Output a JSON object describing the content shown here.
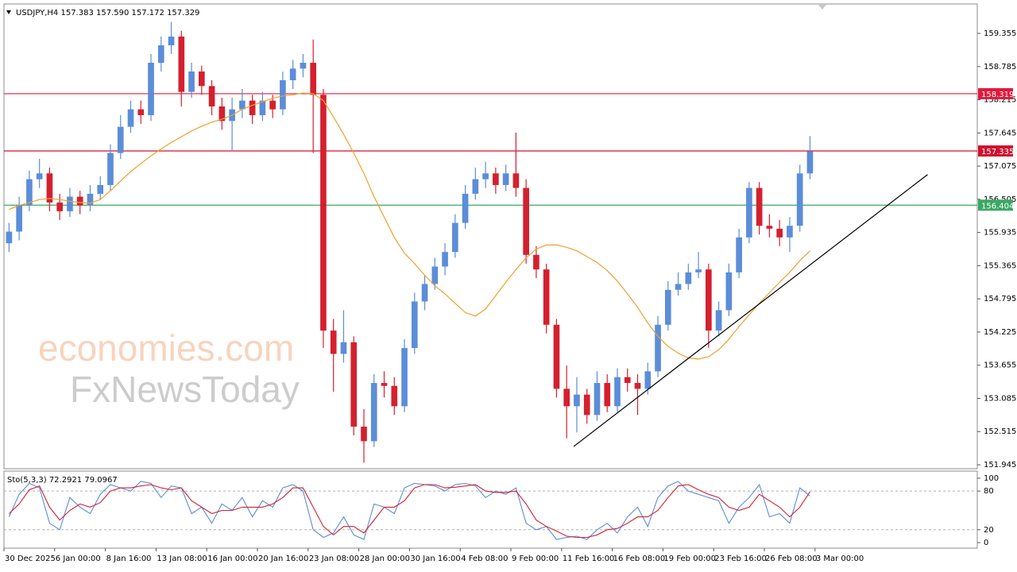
{
  "chart_data": {
    "type": "candlestick",
    "title": "USDJPY,H4 157.383 157.590 157.172 157.329",
    "watermark": [
      "economies.com",
      "FxNewsToday"
    ],
    "xlim": [
      0,
      96
    ],
    "xticks": [
      {
        "value": 0,
        "label": "30 Dec 2025"
      },
      {
        "value": 5,
        "label": "6 Jan 00:00"
      },
      {
        "value": 10,
        "label": "8 Jan 16:00"
      },
      {
        "value": 15,
        "label": "13 Jan 08:00"
      },
      {
        "value": 20,
        "label": "16 Jan 00:00"
      },
      {
        "value": 25,
        "label": "20 Jan 16:00"
      },
      {
        "value": 30,
        "label": "23 Jan 08:00"
      },
      {
        "value": 35,
        "label": "28 Jan 00:00"
      },
      {
        "value": 40,
        "label": "30 Jan 16:00"
      },
      {
        "value": 45,
        "label": "4 Feb 08:00"
      },
      {
        "value": 50,
        "label": "9 Feb 00:00"
      },
      {
        "value": 55,
        "label": "11 Feb 16:00"
      },
      {
        "value": 60,
        "label": "16 Feb 08:00"
      },
      {
        "value": 65,
        "label": "19 Feb 00:00"
      },
      {
        "value": 70,
        "label": "23 Feb 16:00"
      },
      {
        "value": 75,
        "label": "26 Feb 08:00"
      },
      {
        "value": 80,
        "label": "3 Mar 00:00"
      }
    ],
    "ylim": [
      151.877,
      159.86
    ],
    "yticks": [
      159.355,
      158.785,
      158.215,
      157.645,
      157.075,
      156.505,
      155.935,
      155.365,
      154.795,
      154.225,
      153.655,
      153.085,
      152.515,
      151.945
    ],
    "up_color": "#5b8dd9",
    "down_color": "#d4202e",
    "open": [
      155.75,
      155.95,
      156.4,
      156.85,
      156.95,
      156.45,
      156.3,
      156.55,
      156.4,
      156.6,
      156.75,
      157.3,
      157.75,
      158.05,
      157.95,
      158.85,
      159.15,
      159.3,
      158.35,
      158.7,
      158.45,
      158.1,
      157.85,
      158.05,
      158.2,
      157.95,
      158.2,
      158.05,
      158.55,
      158.75,
      158.85,
      158.3,
      154.25,
      153.85,
      154.05,
      152.6,
      152.35,
      153.35,
      153.3,
      152.95,
      153.95,
      154.75,
      155.05,
      155.35,
      155.6,
      156.1,
      156.6,
      156.85,
      156.95,
      156.75,
      156.95,
      156.7,
      155.55,
      155.3,
      154.35,
      153.25,
      152.95,
      153.15,
      152.8,
      153.35,
      152.95,
      153.45,
      153.35,
      153.25,
      153.55,
      154.35,
      154.95,
      155.05,
      155.25,
      155.3,
      154.25,
      154.6,
      155.25,
      155.85,
      156.7,
      156.05,
      156.0,
      155.85,
      156.05,
      156.95
    ],
    "high": [
      156.1,
      156.55,
      157.0,
      157.2,
      157.05,
      156.6,
      156.7,
      156.65,
      156.75,
      156.9,
      157.45,
      157.95,
      158.2,
      158.2,
      159.0,
      159.3,
      159.55,
      159.4,
      158.85,
      158.8,
      158.55,
      158.25,
      158.25,
      158.4,
      158.3,
      158.35,
      158.3,
      158.7,
      158.9,
      159.0,
      159.25,
      158.4,
      154.45,
      154.6,
      154.15,
      152.9,
      153.5,
      153.55,
      153.45,
      154.1,
      154.9,
      155.2,
      155.5,
      155.75,
      156.25,
      156.75,
      157.05,
      157.15,
      157.05,
      157.1,
      157.65,
      156.85,
      155.7,
      155.4,
      154.45,
      153.65,
      153.45,
      153.25,
      153.55,
      153.5,
      153.6,
      153.6,
      153.5,
      153.7,
      154.5,
      155.1,
      155.25,
      155.4,
      155.6,
      155.4,
      154.75,
      155.4,
      156.0,
      156.8,
      156.8,
      156.25,
      156.15,
      156.2,
      157.1,
      157.59
    ],
    "low": [
      155.6,
      155.8,
      156.3,
      156.7,
      156.3,
      156.15,
      156.2,
      156.25,
      156.3,
      156.5,
      156.65,
      157.2,
      157.65,
      157.8,
      157.85,
      158.7,
      159.0,
      158.1,
      158.25,
      158.3,
      157.95,
      157.7,
      157.35,
      157.9,
      157.8,
      157.85,
      157.9,
      157.95,
      158.4,
      158.6,
      157.3,
      153.95,
      153.2,
      153.7,
      152.45,
      151.98,
      152.25,
      153.1,
      152.8,
      152.85,
      153.85,
      154.6,
      154.95,
      155.2,
      155.5,
      156.0,
      156.5,
      156.7,
      156.6,
      156.65,
      156.55,
      155.4,
      155.15,
      154.2,
      153.1,
      152.4,
      152.5,
      152.65,
      152.7,
      152.85,
      152.85,
      153.2,
      152.8,
      153.15,
      153.45,
      154.25,
      154.85,
      154.95,
      155.15,
      153.95,
      154.15,
      154.5,
      155.15,
      155.75,
      155.9,
      155.85,
      155.7,
      155.6,
      155.95,
      156.85
    ],
    "close": [
      155.95,
      156.4,
      156.85,
      156.95,
      156.45,
      156.3,
      156.55,
      156.4,
      156.6,
      156.75,
      157.3,
      157.75,
      158.05,
      157.95,
      158.85,
      159.15,
      159.3,
      158.35,
      158.7,
      158.45,
      158.1,
      157.85,
      158.05,
      158.2,
      157.95,
      158.2,
      158.05,
      158.55,
      158.75,
      158.85,
      158.3,
      154.25,
      153.85,
      154.05,
      152.6,
      152.35,
      153.35,
      153.3,
      152.95,
      153.95,
      154.75,
      155.05,
      155.35,
      155.6,
      156.1,
      156.6,
      156.85,
      156.95,
      156.75,
      156.95,
      156.7,
      155.55,
      155.3,
      154.35,
      153.25,
      152.95,
      153.15,
      152.8,
      153.35,
      152.95,
      153.45,
      153.35,
      153.25,
      153.55,
      154.35,
      154.95,
      155.05,
      155.25,
      155.3,
      154.25,
      154.6,
      155.25,
      155.85,
      156.7,
      156.05,
      156.0,
      155.85,
      156.05,
      156.95,
      157.33
    ],
    "ma": {
      "color": "#f0a030",
      "values": [
        156.33,
        156.4,
        156.45,
        156.5,
        156.52,
        156.5,
        156.47,
        156.45,
        156.44,
        156.5,
        156.65,
        156.82,
        156.98,
        157.12,
        157.25,
        157.37,
        157.48,
        157.58,
        157.68,
        157.76,
        157.83,
        157.88,
        157.95,
        158.05,
        158.12,
        158.18,
        158.24,
        158.28,
        158.3,
        158.33,
        158.32,
        158.2,
        157.92,
        157.62,
        157.3,
        156.95,
        156.55,
        156.2,
        155.85,
        155.58,
        155.4,
        155.2,
        155.02,
        154.88,
        154.72,
        154.56,
        154.5,
        154.62,
        154.85,
        155.08,
        155.3,
        155.5,
        155.65,
        155.72,
        155.72,
        155.68,
        155.62,
        155.52,
        155.42,
        155.28,
        155.1,
        154.88,
        154.65,
        154.38,
        154.15,
        153.98,
        153.86,
        153.78,
        153.76,
        153.8,
        153.92,
        154.1,
        154.32,
        154.52,
        154.72,
        154.9,
        155.08,
        155.25,
        155.45,
        155.62
      ]
    },
    "hlines": [
      {
        "value": 158.319,
        "color": "#e01a3c"
      },
      {
        "value": 157.335,
        "color": "#d0102e"
      },
      {
        "value": 156.404,
        "color": "#3aa865"
      }
    ],
    "trendline": {
      "color": "#000000",
      "x": [
        55.7,
        90.6
      ],
      "y": [
        152.26,
        156.93
      ]
    },
    "stochastic": {
      "title": "Sto(5,3,3) 72.2921 79.0967",
      "ylim": [
        -8.6,
        111
      ],
      "yticks": [
        100,
        80,
        20,
        0
      ],
      "levels": [
        20,
        80
      ],
      "series": [
        {
          "color": "#5b8dd9",
          "values": [
            40,
            75,
            92,
            85,
            30,
            20,
            70,
            55,
            45,
            75,
            90,
            85,
            80,
            95,
            92,
            70,
            88,
            85,
            45,
            55,
            30,
            60,
            50,
            70,
            40,
            65,
            55,
            85,
            90,
            80,
            20,
            8,
            15,
            40,
            12,
            5,
            60,
            55,
            45,
            85,
            92,
            90,
            88,
            80,
            90,
            92,
            88,
            70,
            80,
            75,
            85,
            30,
            20,
            25,
            5,
            8,
            10,
            5,
            20,
            30,
            15,
            40,
            55,
            25,
            70,
            88,
            95,
            80,
            75,
            70,
            65,
            30,
            55,
            70,
            90,
            40,
            45,
            30,
            85,
            72.2921
          ]
        },
        {
          "color": "#d4202e",
          "values": [
            45,
            60,
            82,
            88,
            55,
            35,
            50,
            60,
            55,
            62,
            80,
            85,
            85,
            88,
            90,
            85,
            82,
            85,
            65,
            55,
            45,
            50,
            50,
            55,
            55,
            55,
            60,
            70,
            85,
            85,
            55,
            25,
            12,
            25,
            25,
            15,
            35,
            55,
            55,
            65,
            85,
            90,
            90,
            85,
            86,
            88,
            90,
            80,
            78,
            78,
            80,
            60,
            35,
            25,
            18,
            10,
            8,
            8,
            12,
            20,
            22,
            30,
            40,
            40,
            50,
            70,
            88,
            90,
            82,
            75,
            70,
            55,
            50,
            55,
            75,
            65,
            55,
            40,
            55,
            79.0967
          ]
        }
      ]
    }
  }
}
